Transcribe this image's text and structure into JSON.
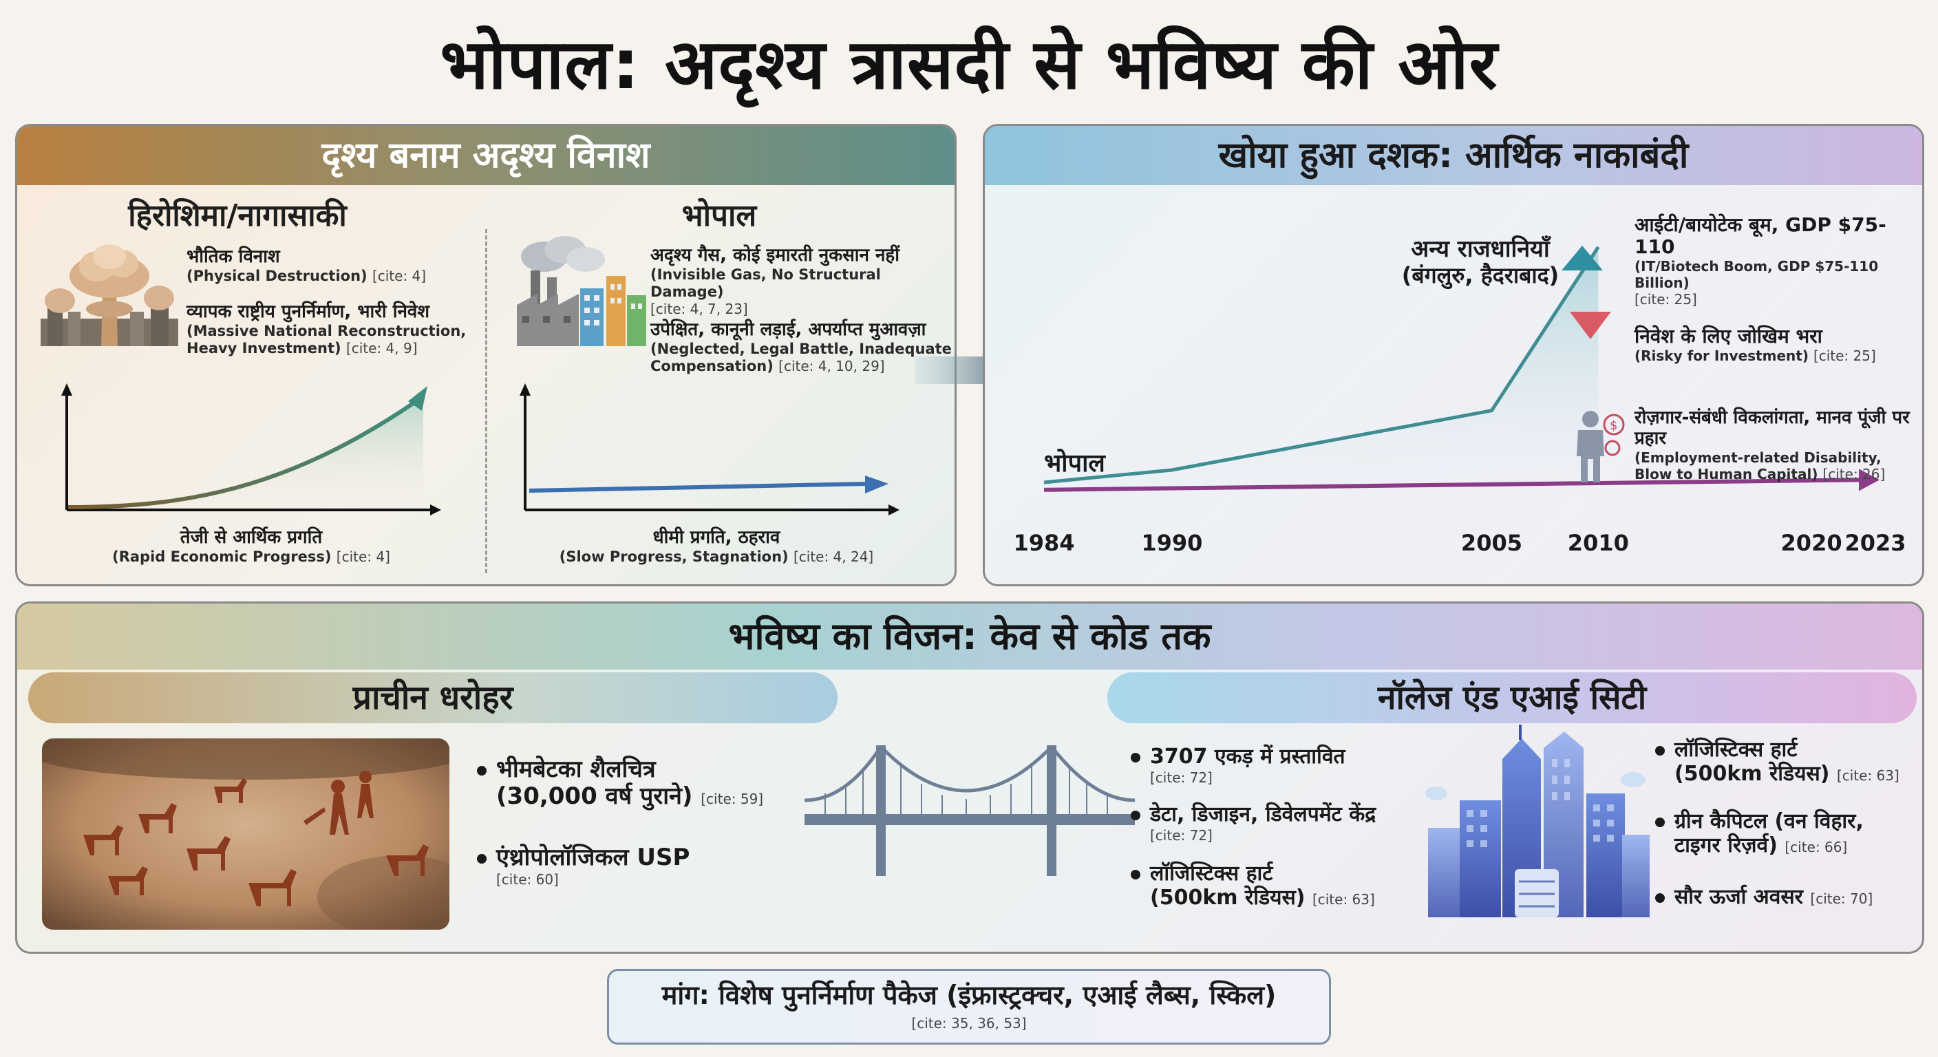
{
  "title": "भोपाल: अदृश्य त्रासदी से भविष्य की ओर",
  "panel_visible": {
    "header": "दृश्य बनाम अदृश्य विनाश",
    "left": {
      "heading": "हिरोशिमा/नागासाकी",
      "items": [
        {
          "hi": "भौतिक विनाश",
          "en": "(Physical Destruction)",
          "cite": "[cite: 4]"
        },
        {
          "hi": "व्यापक राष्ट्रीय पुनर्निर्माण, भारी निवेश",
          "en": "(Massive National Reconstruction, Heavy Investment)",
          "cite": "[cite: 4, 9]"
        }
      ],
      "caption_hi": "तेजी से आर्थिक प्रगति",
      "caption_en": "(Rapid Economic Progress)",
      "caption_cite": "[cite: 4]"
    },
    "right": {
      "heading": "भोपाल",
      "items": [
        {
          "hi": "अदृश्य गैस, कोई इमारती नुकसान नहीं",
          "en": "(Invisible Gas, No Structural Damage)",
          "cite": "[cite: 4, 7, 23]"
        },
        {
          "hi": "उपेक्षित, कानूनी लड़ाई, अपर्याप्त मुआवज़ा",
          "en": "(Neglected, Legal Battle, Inadequate Compensation)",
          "cite": "[cite: 4, 10, 29]"
        }
      ],
      "caption_hi": "धीमी प्रगति, ठहराव",
      "caption_en": "(Slow Progress, Stagnation)",
      "caption_cite": "[cite: 4, 24]"
    }
  },
  "panel_economy": {
    "header": "खोया हुआ दशक: आर्थिक नाकाबंदी",
    "label_others": "अन्य राजधानियाँ",
    "label_others_sub": "(बंगलुरु, हैदराबाद)",
    "label_bhopal": "भोपाल",
    "annotations": [
      {
        "hi": "आईटी/बायोटेक बूम, GDP $75-110",
        "en": "(IT/Biotech Boom, GDP $75-110 Billion)",
        "cite": "[cite: 25]"
      },
      {
        "hi": "निवेश के लिए जोखिम भरा",
        "en": "(Risky for Investment)",
        "cite": "[cite: 25]"
      },
      {
        "hi": "रोज़गार-संबंधी विकलांगता, मानव पूंजी पर प्रहार",
        "en": "(Employment-related Disability, Blow to Human Capital)",
        "cite": "[cite: 26]"
      }
    ],
    "x_ticks": [
      "1984",
      "1990",
      "2005",
      "2010",
      "2020",
      "2023"
    ]
  },
  "chart_data": {
    "type": "line",
    "x": [
      1984,
      1990,
      2005,
      2010,
      2020,
      2023
    ],
    "xlim": [
      1984,
      2023
    ],
    "series": [
      {
        "name": "अन्य राजधानियाँ (बंगलुरु, हैदराबाद)",
        "x": [
          1984,
          1990,
          2005,
          2010
        ],
        "values": [
          5,
          10,
          34,
          100
        ],
        "color": "#3f8d93"
      },
      {
        "name": "भोपाल",
        "x": [
          1984,
          2023
        ],
        "values": [
          2,
          6
        ],
        "color": "#8a3d86"
      }
    ],
    "ylim": [
      0,
      110
    ]
  },
  "panel_future": {
    "header": "भविष्य का विजन: केव से कोड तक",
    "heritage": {
      "pill": "प्राचीन धरोहर",
      "items": [
        {
          "hi": "भीमबेटका शैलचित्र (30,000 वर्ष पुराने)",
          "line1": "भीमबेटका शैलचित्र",
          "line2": "(30,000 वर्ष पुराने)",
          "cite": "[cite: 59]"
        },
        {
          "hi": "एंथ्रोपोलॉजिकल USP",
          "cite": "[cite: 60]"
        }
      ]
    },
    "ai_city": {
      "pill": "नॉलेज एंड एआई सिटी",
      "left_items": [
        {
          "line1": "3707 एकड़ में प्रस्तावित",
          "cite": "[cite: 72]"
        },
        {
          "line1": "डेटा, डिजाइन, डिवेलपमेंट केंद्र",
          "cite": "[cite: 72]"
        },
        {
          "line1": "लॉजिस्टिक्स हार्ट",
          "line2": "(500km रेडियस)",
          "cite": "[cite: 63]"
        }
      ],
      "right_items": [
        {
          "line1": "लॉजिस्टिक्स हार्ट",
          "line2": "(500km रेडियस)",
          "cite": "[cite: 63]"
        },
        {
          "line1": "ग्रीन कैपिटल (वन विहार,",
          "line2": "टाइगर रिज़र्व)",
          "cite": "[cite: 66]"
        },
        {
          "line1": "सौर ऊर्जा अवसर",
          "cite": "[cite: 70]"
        }
      ]
    }
  },
  "demand": {
    "text": "मांग: विशेष पुनर्निर्माण पैकेज (इंफ्रास्ट्रक्चर, एआई लैब्स, स्किल)",
    "cite": "[cite: 35, 36, 53]"
  },
  "icons": {
    "mushroom_cloud": "mushroom-cloud-icon",
    "factory": "factory-icon",
    "bridge": "suspension-bridge-icon",
    "city": "skyscraper-city-icon",
    "worker": "disabled-worker-icon",
    "cave_art": "cave-painting-image"
  },
  "colors": {
    "growth_green": "#3f8d93",
    "bhopal_purple": "#8a3d86",
    "arrow_blue": "#3b6fb0",
    "risk_red": "#d9424a",
    "up_teal": "#2f8ea0"
  }
}
